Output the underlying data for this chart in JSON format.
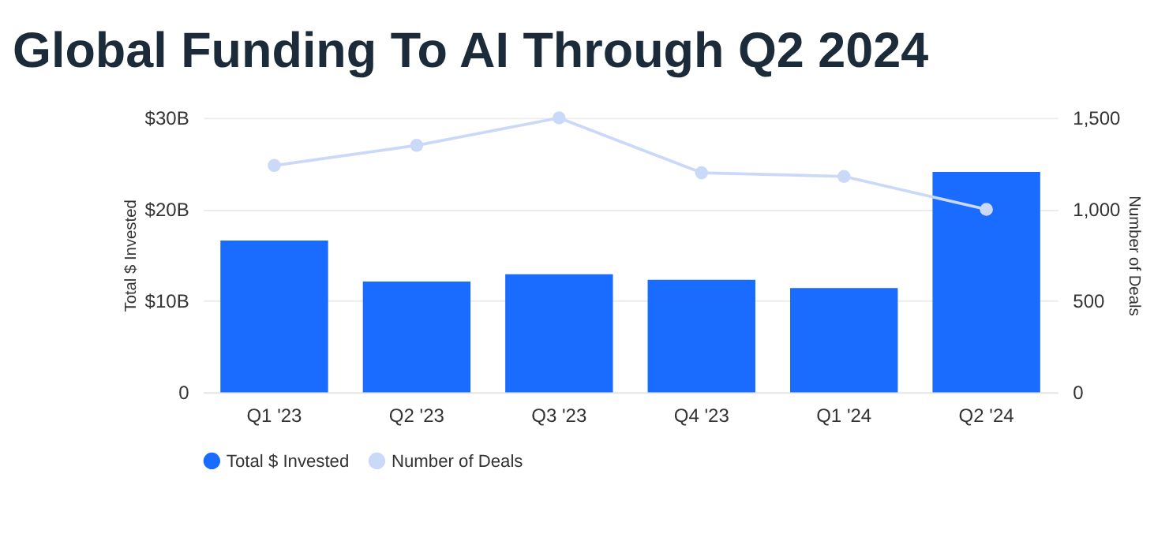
{
  "chart_data": {
    "type": "bar",
    "title": "Global Funding To AI Through Q2 2024",
    "categories": [
      "Q1 '23",
      "Q2 '23",
      "Q3 '23",
      "Q4 '23",
      "Q1 '24",
      "Q2 '24"
    ],
    "series": [
      {
        "name": "Total $ Invested",
        "color": "#1a6bff",
        "values": [
          16.6,
          12.1,
          12.9,
          12.3,
          11.4,
          24.1
        ]
      },
      {
        "name": "Number of Deals",
        "color": "#c9d9f7",
        "type": "line",
        "axis": "y2",
        "values": [
          1240,
          1350,
          1500,
          1200,
          1180,
          1000
        ]
      }
    ],
    "ylabel": "Total $ Invested",
    "y2label": "Number of Deals",
    "ylim": [
      0,
      30
    ],
    "yticks": [
      0,
      {
        "value": 10,
        "label": "$10B"
      },
      {
        "value": 20,
        "label": "$20B"
      },
      {
        "value": 30,
        "label": "$30B"
      }
    ],
    "y2lim": [
      0,
      1500
    ],
    "y2ticks": [
      0,
      500,
      {
        "value": 1000,
        "label": "1,000"
      },
      {
        "value": 1500,
        "label": "1,500"
      }
    ],
    "grid": "y",
    "legend": "bottom",
    "marker": "circle",
    "line_style": "solid"
  }
}
